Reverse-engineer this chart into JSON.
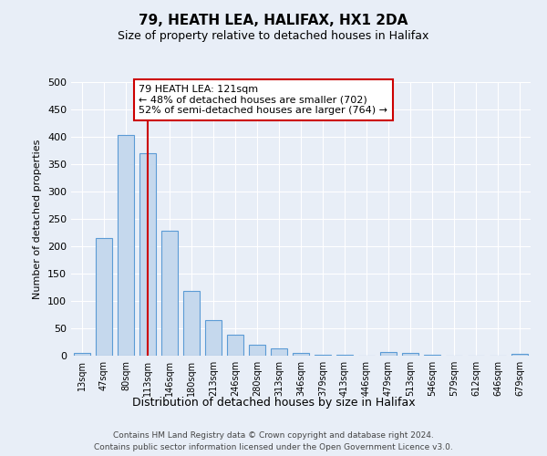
{
  "title": "79, HEATH LEA, HALIFAX, HX1 2DA",
  "subtitle": "Size of property relative to detached houses in Halifax",
  "xlabel": "Distribution of detached houses by size in Halifax",
  "ylabel": "Number of detached properties",
  "categories": [
    "13sqm",
    "47sqm",
    "80sqm",
    "113sqm",
    "146sqm",
    "180sqm",
    "213sqm",
    "246sqm",
    "280sqm",
    "313sqm",
    "346sqm",
    "379sqm",
    "413sqm",
    "446sqm",
    "479sqm",
    "513sqm",
    "546sqm",
    "579sqm",
    "612sqm",
    "646sqm",
    "679sqm"
  ],
  "values": [
    5,
    215,
    403,
    370,
    228,
    118,
    65,
    39,
    20,
    14,
    5,
    2,
    1,
    0,
    7,
    5,
    2,
    0,
    0,
    0,
    3
  ],
  "bar_color": "#c5d8ed",
  "bar_edge_color": "#5b9bd5",
  "bar_edge_width": 0.8,
  "vline_x_idx": 3,
  "vline_color": "#cc0000",
  "annotation_text": "79 HEATH LEA: 121sqm\n← 48% of detached houses are smaller (702)\n52% of semi-detached houses are larger (764) →",
  "annotation_box_color": "#ffffff",
  "annotation_box_edge": "#cc0000",
  "ylim": [
    0,
    500
  ],
  "yticks": [
    0,
    50,
    100,
    150,
    200,
    250,
    300,
    350,
    400,
    450,
    500
  ],
  "bg_color": "#e8eef7",
  "footer_line1": "Contains HM Land Registry data © Crown copyright and database right 2024.",
  "footer_line2": "Contains public sector information licensed under the Open Government Licence v3.0."
}
